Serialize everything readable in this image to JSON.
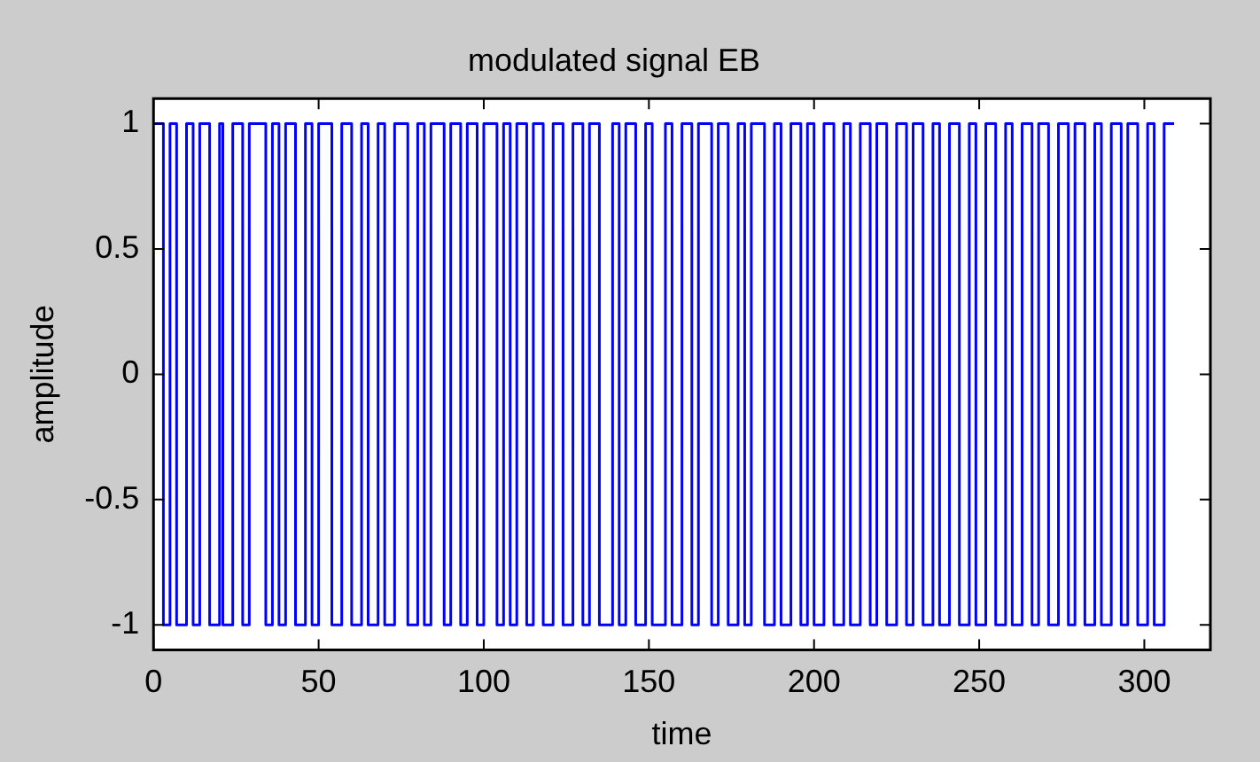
{
  "chart_data": {
    "type": "step",
    "title": "modulated signal EB",
    "xlabel": "time",
    "ylabel": "amplitude",
    "x": [
      0,
      3,
      5,
      7,
      10,
      12,
      14,
      17,
      20,
      21,
      24,
      27,
      29,
      34,
      36,
      38,
      40,
      43,
      46,
      48,
      50,
      54,
      57,
      60,
      63,
      65,
      68,
      70,
      73,
      77,
      80,
      82,
      84,
      88,
      90,
      93,
      95,
      98,
      100,
      104,
      106,
      108,
      110,
      113,
      115,
      118,
      121,
      124,
      127,
      130,
      132,
      135,
      139,
      141,
      143,
      146,
      149,
      151,
      155,
      157,
      160,
      163,
      165,
      169,
      171,
      174,
      177,
      179,
      181,
      185,
      188,
      190,
      193,
      196,
      198,
      200,
      203,
      206,
      209,
      211,
      214,
      217,
      219,
      222,
      225,
      228,
      230,
      233,
      236,
      238,
      241,
      244,
      247,
      249,
      252,
      255,
      258,
      260,
      263,
      266,
      268,
      271,
      274,
      277,
      279,
      282,
      285,
      287,
      290,
      293,
      295,
      298,
      301,
      303,
      306,
      309
    ],
    "values": [
      1,
      -1,
      1,
      -1,
      1,
      -1,
      1,
      -1,
      1,
      -1,
      1,
      -1,
      1,
      -1,
      1,
      -1,
      1,
      -1,
      1,
      -1,
      1,
      -1,
      1,
      -1,
      1,
      -1,
      1,
      -1,
      1,
      -1,
      1,
      -1,
      1,
      -1,
      1,
      -1,
      1,
      -1,
      1,
      -1,
      1,
      -1,
      1,
      -1,
      1,
      -1,
      1,
      -1,
      1,
      -1,
      1,
      -1,
      1,
      -1,
      1,
      -1,
      1,
      -1,
      1,
      -1,
      1,
      -1,
      1,
      -1,
      1,
      -1,
      1,
      -1,
      1,
      -1,
      1,
      -1,
      1,
      -1,
      1,
      -1,
      1,
      -1,
      1,
      -1,
      1,
      -1,
      1,
      -1,
      1,
      -1,
      1,
      -1,
      1,
      -1,
      1,
      -1,
      1,
      -1,
      1,
      -1,
      1,
      -1,
      1,
      -1,
      1,
      -1,
      1,
      -1,
      1,
      -1,
      1,
      -1,
      1,
      -1,
      1,
      -1,
      1,
      -1,
      1,
      1
    ],
    "color": "#0000ff",
    "xlim": [
      0,
      320
    ],
    "xticks": [
      0,
      50,
      100,
      150,
      200,
      250,
      300
    ],
    "ylim": [
      -1.1,
      1.1
    ],
    "yticks": [
      -1,
      -0.5,
      0,
      0.5,
      1
    ],
    "grid": false,
    "legend": false
  }
}
